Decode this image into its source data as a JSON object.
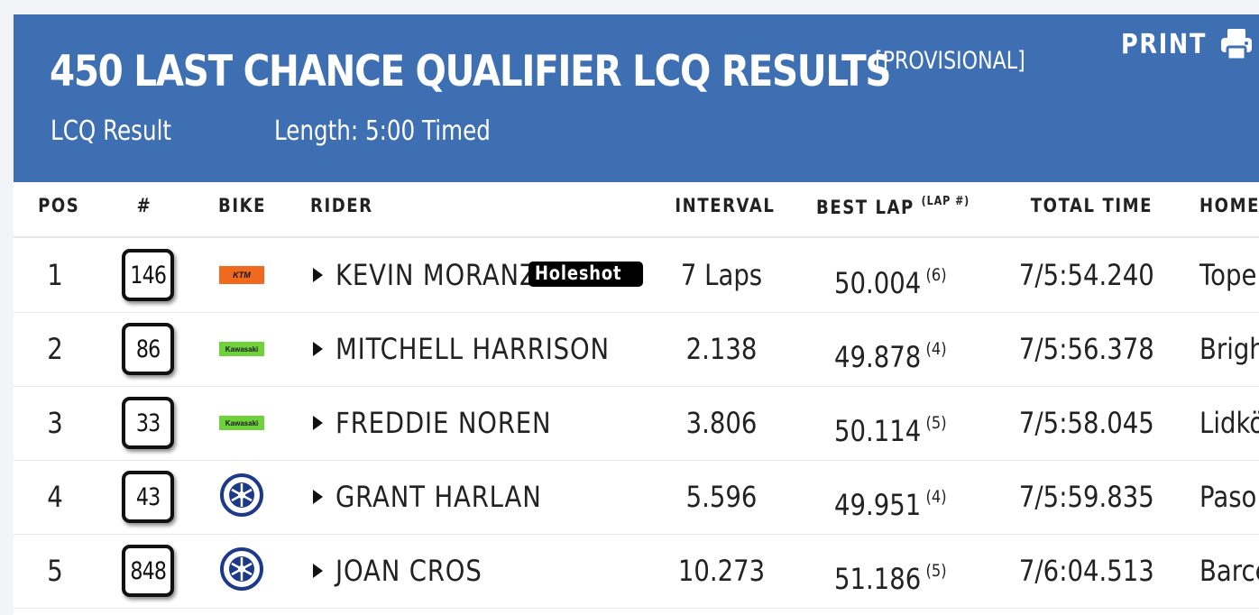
{
  "header": {
    "title": "450 LAST CHANCE QUALIFIER LCQ RESULTS",
    "status": "[PROVISIONAL]",
    "print_label": "PRINT",
    "result_label": "LCQ Result",
    "length_label": "Length: 5:00 Timed",
    "background_color": "#3e6fb3"
  },
  "columns": {
    "pos": "POS",
    "num": "#",
    "bike": "BIKE",
    "rider": "RIDER",
    "interval": "INTERVAL",
    "best_lap": "BEST LAP",
    "best_lap_note": "(LAP #)",
    "total_time": "TOTAL TIME",
    "home": "HOME"
  },
  "rows": [
    {
      "pos": "1",
      "num": "146",
      "bike": "KTM",
      "bike_icon": "ktm-logo",
      "rider": "KEVIN MORANZ",
      "badge": "Holeshot",
      "interval": "7 Laps",
      "best_lap": "50.004",
      "lap_no": "(6)",
      "total_time": "7/5:54.240",
      "home": "Tope"
    },
    {
      "pos": "2",
      "num": "86",
      "bike": "Kawasaki",
      "bike_icon": "kawasaki-logo",
      "rider": "MITCHELL HARRISON",
      "interval": "2.138",
      "best_lap": "49.878",
      "lap_no": "(4)",
      "total_time": "7/5:56.378",
      "home": "Brigh"
    },
    {
      "pos": "3",
      "num": "33",
      "bike": "Kawasaki",
      "bike_icon": "kawasaki-logo",
      "rider": "FREDDIE NOREN",
      "interval": "3.806",
      "best_lap": "50.114",
      "lap_no": "(5)",
      "total_time": "7/5:58.045",
      "home": "Lidkö"
    },
    {
      "pos": "4",
      "num": "43",
      "bike": "Yamaha",
      "bike_icon": "yamaha-logo",
      "rider": "GRANT HARLAN",
      "interval": "5.596",
      "best_lap": "49.951",
      "lap_no": "(4)",
      "total_time": "7/5:59.835",
      "home": "Paso"
    },
    {
      "pos": "5",
      "num": "848",
      "bike": "Yamaha",
      "bike_icon": "yamaha-logo",
      "rider": "JOAN CROS",
      "interval": "10.273",
      "best_lap": "51.186",
      "lap_no": "(5)",
      "total_time": "7/6:04.513",
      "home": "Barce"
    }
  ]
}
